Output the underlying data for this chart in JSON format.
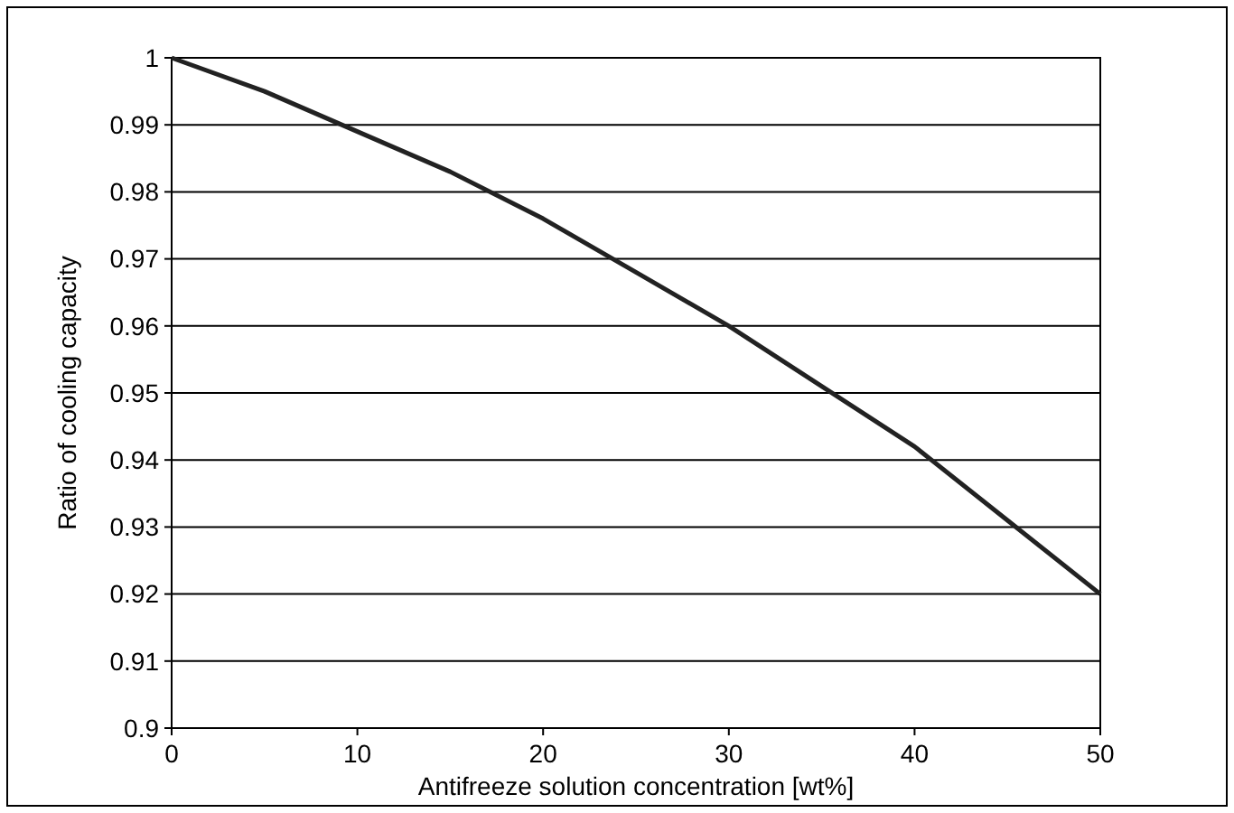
{
  "chart_data": {
    "type": "line",
    "xlabel": "Antifreeze solution concentration [wt%]",
    "ylabel": "Ratio of cooling capacity",
    "x": [
      0,
      5,
      10,
      15,
      20,
      25,
      30,
      35,
      40,
      45,
      50
    ],
    "series": [
      {
        "color": "#222222",
        "values": [
          1,
          0.995,
          0.989,
          0.983,
          0.976,
          0.968,
          0.96,
          0.951,
          0.942,
          0.931,
          0.92
        ]
      }
    ],
    "xlim": [
      0,
      50
    ],
    "xticks": [
      0,
      10,
      20,
      30,
      40,
      50
    ],
    "ylim": [
      0.9,
      1
    ],
    "yticks": [
      0.9,
      0.91,
      0.92,
      0.93,
      0.94,
      0.95,
      0.96,
      0.97,
      0.98,
      0.99,
      1
    ],
    "grid": "y",
    "marker": "none",
    "line_style": "solid"
  }
}
